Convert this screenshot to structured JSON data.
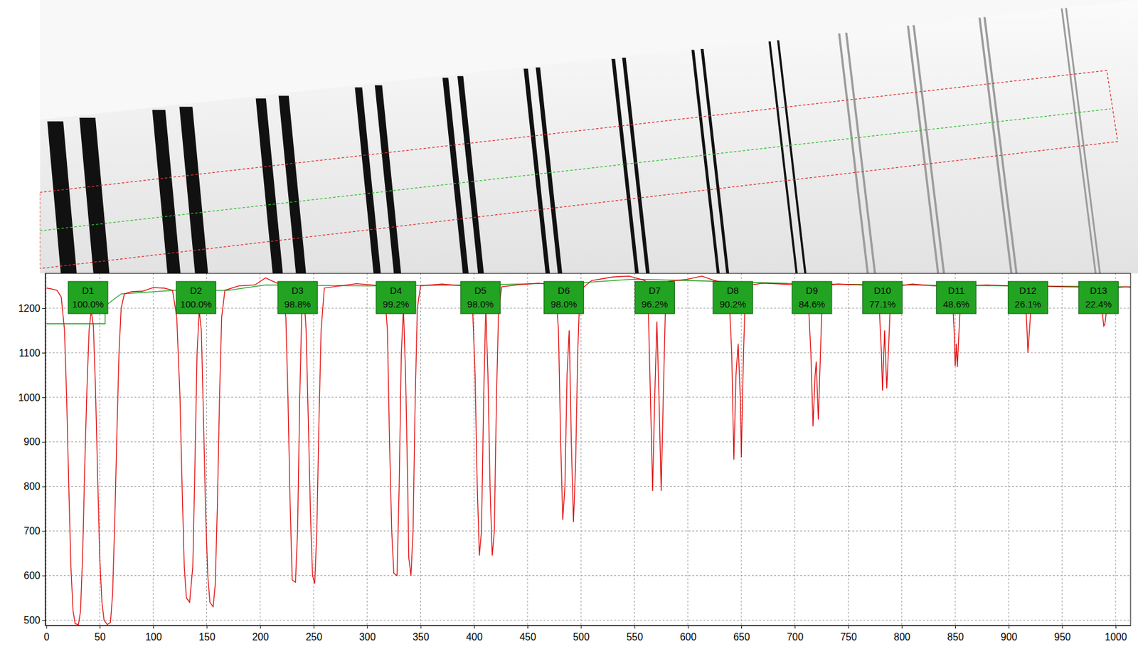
{
  "chart_data": {
    "type": "line",
    "xlim": [
      -1,
      1014
    ],
    "ylim": [
      488,
      1278
    ],
    "xticks": [
      0,
      50,
      100,
      150,
      200,
      250,
      300,
      350,
      400,
      450,
      500,
      550,
      600,
      650,
      700,
      750,
      800,
      850,
      900,
      950,
      1000
    ],
    "yticks": [
      500,
      600,
      700,
      800,
      900,
      1000,
      1100,
      1200
    ],
    "grid": true,
    "series": [
      {
        "color": "#e00000",
        "line_style": "solid",
        "x": [
          0,
          5,
          10,
          14,
          17,
          19,
          21,
          23,
          25,
          27,
          30,
          32,
          34,
          36,
          38,
          40,
          42,
          44,
          46,
          48,
          50,
          52,
          54,
          57,
          60,
          62,
          64,
          66,
          68,
          70,
          73,
          80,
          90,
          100,
          110,
          118,
          122,
          125,
          127,
          129,
          131,
          134,
          137,
          139,
          141,
          143,
          145,
          147,
          149,
          151,
          153,
          156,
          158,
          160,
          162,
          164,
          167,
          180,
          195,
          205,
          212,
          220,
          224,
          226,
          228,
          230,
          233,
          235,
          237,
          239,
          241,
          243,
          245,
          247,
          249,
          251,
          253,
          255,
          257,
          260,
          275,
          290,
          305,
          316,
          319,
          321,
          323,
          325,
          328,
          330,
          332,
          334,
          336,
          338,
          339,
          341,
          343,
          345,
          347,
          350,
          370,
          390,
          398,
          401,
          403,
          405,
          407,
          409,
          411,
          413,
          415,
          417,
          419,
          421,
          423,
          426,
          440,
          460,
          476,
          479,
          481,
          483,
          485,
          487,
          489,
          491,
          493,
          495,
          497,
          499,
          510,
          530,
          545,
          560,
          563,
          565,
          567,
          569,
          571,
          573,
          575,
          577,
          579,
          582,
          600,
          613,
          625,
          638,
          641,
          643,
          645,
          647,
          649,
          650,
          652,
          654,
          670,
          690,
          712,
          715,
          717,
          719,
          720,
          722,
          724,
          726,
          740,
          760,
          778,
          781,
          782,
          784,
          786,
          788,
          790,
          810,
          830,
          847,
          849,
          850,
          851,
          852,
          854,
          856,
          880,
          900,
          915,
          917,
          918,
          920,
          922,
          950,
          975,
          987,
          988,
          989,
          990,
          991,
          993,
          1010,
          1014
        ],
        "values": [
          1245,
          1243,
          1240,
          1225,
          1150,
          1000,
          800,
          620,
          520,
          492,
          490,
          520,
          650,
          850,
          1020,
          1150,
          1195,
          1160,
          1020,
          820,
          640,
          540,
          500,
          490,
          495,
          560,
          720,
          920,
          1100,
          1200,
          1232,
          1237,
          1238,
          1246,
          1245,
          1240,
          1180,
          1000,
          800,
          620,
          550,
          540,
          620,
          850,
          1100,
          1195,
          1150,
          950,
          740,
          600,
          540,
          530,
          580,
          760,
          1000,
          1180,
          1240,
          1250,
          1252,
          1268,
          1260,
          1252,
          1180,
          1000,
          760,
          590,
          585,
          700,
          1000,
          1200,
          1225,
          1150,
          950,
          740,
          600,
          582,
          700,
          950,
          1150,
          1245,
          1250,
          1255,
          1252,
          1248,
          1150,
          900,
          700,
          605,
          600,
          800,
          1100,
          1200,
          1050,
          800,
          640,
          600,
          700,
          1000,
          1200,
          1250,
          1254,
          1250,
          1240,
          1050,
          800,
          645,
          700,
          1000,
          1200,
          1050,
          800,
          645,
          700,
          1000,
          1200,
          1248,
          1252,
          1256,
          1252,
          1150,
          900,
          725,
          800,
          1050,
          1150,
          900,
          720,
          850,
          1100,
          1240,
          1262,
          1270,
          1272,
          1262,
          1200,
          1000,
          790,
          1000,
          1170,
          1000,
          790,
          1000,
          1200,
          1260,
          1265,
          1272,
          1262,
          1255,
          1100,
          860,
          1050,
          1120,
          1000,
          865,
          1100,
          1250,
          1256,
          1254,
          1250,
          1100,
          935,
          1050,
          1080,
          950,
          1100,
          1250,
          1254,
          1252,
          1250,
          1100,
          1015,
          1150,
          1020,
          1130,
          1248,
          1254,
          1250,
          1250,
          1150,
          1070,
          1120,
          1068,
          1170,
          1250,
          1252,
          1250,
          1250,
          1160,
          1100,
          1170,
          1250,
          1248,
          1247,
          1245,
          1180,
          1160,
          1165,
          1185,
          1245,
          1248,
          1247
        ]
      },
      {
        "color": "#18a018",
        "line_style": "solid",
        "x": [
          0,
          55,
          55,
          70,
          120,
          170,
          205,
          300,
          400,
          500,
          550,
          600,
          700,
          800,
          900,
          1014
        ],
        "values": [
          1165,
          1165,
          1205,
          1232,
          1240,
          1240,
          1252,
          1250,
          1252,
          1257,
          1265,
          1262,
          1255,
          1252,
          1250,
          1248
        ]
      }
    ],
    "annotations": [
      {
        "x": 39,
        "text": "D1",
        "label": "100.0%"
      },
      {
        "x": 140,
        "text": "D2",
        "label": "100.0%"
      },
      {
        "x": 235,
        "text": "D3",
        "label": "98.8%"
      },
      {
        "x": 327,
        "text": "D4",
        "label": "99.2%"
      },
      {
        "x": 406,
        "text": "D5",
        "label": "98.0%"
      },
      {
        "x": 484,
        "text": "D6",
        "label": "98.0%"
      },
      {
        "x": 569,
        "text": "D7",
        "label": "96.2%"
      },
      {
        "x": 642,
        "text": "D8",
        "label": "90.2%"
      },
      {
        "x": 716,
        "text": "D9",
        "label": "84.6%"
      },
      {
        "x": 782,
        "text": "D10",
        "label": "77.1%"
      },
      {
        "x": 851,
        "text": "D11",
        "label": "48.6%"
      },
      {
        "x": 918,
        "text": "D12",
        "label": "26.1%"
      },
      {
        "x": 984,
        "text": "D13",
        "label": "22.4%"
      }
    ]
  }
}
